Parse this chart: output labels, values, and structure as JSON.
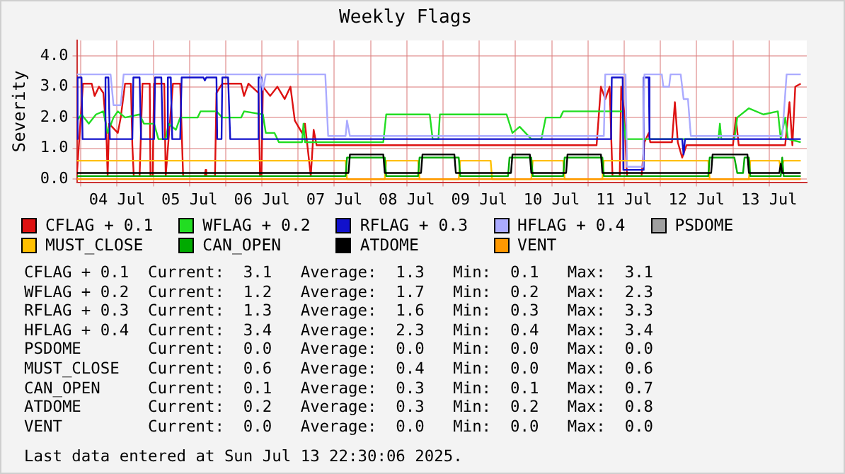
{
  "chart_data": {
    "type": "line",
    "title": "Weekly Flags",
    "ylabel": "Severity",
    "xlim": [
      "2025-07-03T22:40",
      "2025-07-14T00:30"
    ],
    "xticks": [
      {
        "value": "2025-07-04T00:00",
        "label": null
      },
      {
        "value": "2025-07-04T12:00",
        "label": "04 Jul"
      },
      {
        "value": "2025-07-05T00:00",
        "label": null
      },
      {
        "value": "2025-07-05T12:00",
        "label": "05 Jul"
      },
      {
        "value": "2025-07-06T00:00",
        "label": null
      },
      {
        "value": "2025-07-06T12:00",
        "label": "06 Jul"
      },
      {
        "value": "2025-07-07T00:00",
        "label": null
      },
      {
        "value": "2025-07-07T12:00",
        "label": "07 Jul"
      },
      {
        "value": "2025-07-08T00:00",
        "label": null
      },
      {
        "value": "2025-07-08T12:00",
        "label": "08 Jul"
      },
      {
        "value": "2025-07-09T00:00",
        "label": null
      },
      {
        "value": "2025-07-09T12:00",
        "label": "09 Jul"
      },
      {
        "value": "2025-07-10T00:00",
        "label": null
      },
      {
        "value": "2025-07-10T12:00",
        "label": "10 Jul"
      },
      {
        "value": "2025-07-11T00:00",
        "label": null
      },
      {
        "value": "2025-07-11T12:00",
        "label": "11 Jul"
      },
      {
        "value": "2025-07-12T00:00",
        "label": null
      },
      {
        "value": "2025-07-12T12:00",
        "label": "12 Jul"
      },
      {
        "value": "2025-07-13T00:00",
        "label": null
      },
      {
        "value": "2025-07-13T12:00",
        "label": "13 Jul"
      }
    ],
    "ylim": [
      -0.1,
      4.5
    ],
    "yticks": [
      {
        "value": 0,
        "label": "0.0"
      },
      {
        "value": 1,
        "label": "1.0"
      },
      {
        "value": 2,
        "label": "2.0"
      },
      {
        "value": 3,
        "label": "3.0"
      },
      {
        "value": 4,
        "label": "4.0"
      }
    ],
    "grid": true,
    "legend": "bottom",
    "marker": "none",
    "series": [
      {
        "name": "CFLAG + 0.1",
        "color": "#dd1111",
        "x": [
          "2025-07-03T22:40",
          "2025-07-04T00:43",
          "2025-07-04T03:36",
          "2025-07-04T04:34",
          "2025-07-04T06:01",
          "2025-07-04T07:27",
          "2025-07-04T08:25",
          "2025-07-04T08:53",
          "2025-07-04T09:22",
          "2025-07-04T12:15",
          "2025-07-04T13:13",
          "2025-07-04T14:39",
          "2025-07-04T16:35",
          "2025-07-04T17:04",
          "2025-07-04T17:32",
          "2025-07-04T19:28",
          "2025-07-04T20:26",
          "2025-07-04T22:50",
          "2025-07-04T23:04",
          "2025-07-04T23:47",
          "2025-07-05T00:16",
          "2025-07-05T03:38",
          "2025-07-05T04:07",
          "2025-07-05T06:31",
          "2025-07-05T08:55",
          "2025-07-05T09:53",
          "2025-07-05T17:05",
          "2025-07-05T17:20",
          "2025-07-05T17:34",
          "2025-07-05T20:27",
          "2025-07-05T20:56",
          "2025-07-05T22:52",
          "2025-07-06T05:06",
          "2025-07-06T06:04",
          "2025-07-06T07:31",
          "2025-07-06T10:52",
          "2025-07-06T11:21",
          "2025-07-06T11:50",
          "2025-07-06T12:19",
          "2025-07-06T14:43",
          "2025-07-06T17:07",
          "2025-07-06T19:32",
          "2025-07-06T21:27",
          "2025-07-06T22:53",
          "2025-07-07T01:17",
          "2025-07-07T02:15",
          "2025-07-07T04:11",
          "2025-07-07T05:08",
          "2025-07-07T06:06",
          "2025-07-11T02:52",
          "2025-07-11T04:18",
          "2025-07-11T05:44",
          "2025-07-11T07:11",
          "2025-07-11T08:08",
          "2025-07-11T10:32",
          "2025-07-11T11:01",
          "2025-07-11T11:59",
          "2025-07-11T12:57",
          "2025-07-11T17:45",
          "2025-07-11T18:43",
          "2025-07-11T20:09",
          "2025-07-11T20:38",
          "2025-07-12T03:50",
          "2025-07-12T04:48",
          "2025-07-12T05:46",
          "2025-07-12T07:13",
          "2025-07-12T08:39",
          "2025-07-13T00:02",
          "2025-07-13T01:00",
          "2025-07-13T01:57",
          "2025-07-13T17:20",
          "2025-07-13T18:46",
          "2025-07-13T19:44",
          "2025-07-13T20:41",
          "2025-07-13T22:30"
        ],
        "values": [
          0.1,
          3.1,
          3.1,
          2.7,
          3.0,
          2.8,
          1.6,
          0.1,
          1.8,
          1.5,
          2.0,
          3.1,
          3.1,
          1.1,
          0.1,
          0.1,
          3.1,
          3.1,
          0.1,
          0.1,
          3.1,
          3.1,
          0.1,
          3.1,
          3.1,
          0.1,
          0.1,
          0.3,
          0.1,
          0.1,
          2.8,
          3.1,
          3.1,
          2.7,
          3.1,
          2.8,
          0.1,
          0.1,
          3.0,
          2.7,
          3.0,
          2.6,
          3.0,
          1.9,
          1.5,
          1.8,
          0.1,
          1.6,
          1.1,
          1.1,
          3.0,
          2.6,
          3.0,
          0.1,
          0.1,
          3.0,
          2.2,
          0.1,
          0.1,
          1.2,
          1.5,
          1.2,
          1.2,
          2.5,
          1.2,
          0.7,
          1.1,
          1.1,
          2.0,
          1.1,
          1.1,
          2.5,
          1.1,
          3.0,
          3.1
        ]
      },
      {
        "name": "WFLAG + 0.2",
        "color": "#22dd22",
        "x": [
          "2025-07-03T22:40",
          "2025-07-04T00:14",
          "2025-07-04T02:38",
          "2025-07-04T05:02",
          "2025-07-04T07:27",
          "2025-07-04T08:53",
          "2025-07-04T10:49",
          "2025-07-04T12:15",
          "2025-07-04T14:39",
          "2025-07-04T19:28",
          "2025-07-04T20:54",
          "2025-07-05T00:16",
          "2025-07-05T01:43",
          "2025-07-05T04:07",
          "2025-07-05T05:04",
          "2025-07-05T07:29",
          "2025-07-05T08:55",
          "2025-07-05T14:41",
          "2025-07-05T15:39",
          "2025-07-05T20:56",
          "2025-07-05T22:52",
          "2025-07-06T05:06",
          "2025-07-06T06:04",
          "2025-07-06T12:19",
          "2025-07-06T13:17",
          "2025-07-06T16:10",
          "2025-07-06T17:36",
          "2025-07-07T01:17",
          "2025-07-07T01:46",
          "2025-07-07T02:15",
          "2025-07-08T04:12",
          "2025-07-08T05:10",
          "2025-07-08T19:35",
          "2025-07-08T20:33",
          "2025-07-08T22:28",
          "2025-07-08T22:57",
          "2025-07-09T21:03",
          "2025-07-09T22:59",
          "2025-07-10T01:23",
          "2025-07-10T05:14",
          "2025-07-10T08:35",
          "2025-07-10T10:02",
          "2025-07-10T14:50",
          "2025-07-10T15:48",
          "2025-07-11T11:30",
          "2025-07-11T12:28",
          "2025-07-12T19:14",
          "2025-07-12T19:43",
          "2025-07-12T20:11",
          "2025-07-13T00:31",
          "2025-07-13T01:28",
          "2025-07-13T05:19",
          "2025-07-13T10:07",
          "2025-07-13T14:55",
          "2025-07-13T15:53",
          "2025-07-13T17:20",
          "2025-07-13T18:17",
          "2025-07-13T22:30"
        ],
        "values": [
          1.9,
          2.1,
          1.8,
          2.1,
          2.2,
          1.5,
          2.0,
          2.2,
          2.0,
          2.1,
          1.8,
          1.8,
          1.3,
          1.3,
          1.8,
          1.6,
          2.0,
          2.0,
          2.2,
          2.2,
          2.0,
          2.0,
          2.2,
          2.1,
          1.5,
          1.5,
          1.2,
          1.2,
          1.8,
          1.2,
          1.2,
          2.1,
          2.1,
          1.3,
          1.3,
          2.1,
          2.1,
          1.5,
          1.7,
          1.3,
          1.3,
          2.0,
          2.0,
          2.2,
          2.2,
          1.3,
          1.3,
          1.8,
          1.3,
          1.3,
          2.0,
          2.3,
          2.1,
          2.2,
          1.3,
          2.0,
          1.3,
          1.2
        ]
      },
      {
        "name": "RFLAG + 0.3",
        "color": "#1111cc",
        "x": [
          "2025-07-03T22:40",
          "2025-07-03T22:56",
          "2025-07-04T00:14",
          "2025-07-04T00:35",
          "2025-07-04T07:56",
          "2025-07-04T08:10",
          "2025-07-04T09:08",
          "2025-07-04T09:37",
          "2025-07-04T17:04",
          "2025-07-04T17:24",
          "2025-07-04T19:28",
          "2025-07-04T19:57",
          "2025-07-05T00:16",
          "2025-07-05T00:36",
          "2025-07-05T02:40",
          "2025-07-05T03:09",
          "2025-07-05T04:36",
          "2025-07-05T04:50",
          "2025-07-05T05:48",
          "2025-07-05T06:17",
          "2025-07-05T08:55",
          "2025-07-05T09:24",
          "2025-07-05T16:37",
          "2025-07-05T17:05",
          "2025-07-05T17:34",
          "2025-07-05T20:56",
          "2025-07-05T21:11",
          "2025-07-05T22:37",
          "2025-07-05T22:52",
          "2025-07-06T00:47",
          "2025-07-06T01:30",
          "2025-07-06T10:38",
          "2025-07-06T10:52",
          "2025-07-06T11:50",
          "2025-07-06T12:05",
          "2025-07-11T07:40",
          "2025-07-11T07:54",
          "2025-07-11T11:30",
          "2025-07-11T11:44",
          "2025-07-11T18:14",
          "2025-07-11T18:28",
          "2025-07-11T20:09",
          "2025-07-11T20:24",
          "2025-07-12T07:13",
          "2025-07-12T07:41",
          "2025-07-12T08:10",
          "2025-07-13T22:30"
        ],
        "values": [
          1.3,
          3.3,
          3.3,
          1.3,
          1.3,
          3.3,
          3.3,
          1.3,
          1.3,
          3.3,
          3.3,
          1.3,
          1.3,
          3.3,
          3.3,
          1.3,
          1.3,
          3.3,
          3.3,
          1.3,
          1.3,
          3.3,
          3.3,
          3.2,
          3.3,
          3.3,
          1.3,
          1.3,
          3.3,
          3.3,
          1.3,
          1.3,
          3.3,
          3.3,
          1.3,
          1.3,
          3.3,
          3.3,
          0.3,
          0.3,
          3.3,
          3.3,
          1.3,
          1.3,
          0.8,
          1.3,
          1.3
        ]
      },
      {
        "name": "HFLAG + 0.4",
        "color": "#aaaaff",
        "x": [
          "2025-07-03T22:40",
          "2025-07-04T09:51",
          "2025-07-04T10:49",
          "2025-07-04T13:13",
          "2025-07-04T14:11",
          "2025-07-06T11:21",
          "2025-07-06T12:19",
          "2025-07-06T13:17",
          "2025-07-07T08:59",
          "2025-07-07T09:56",
          "2025-07-07T15:43",
          "2025-07-07T16:11",
          "2025-07-07T17:09",
          "2025-07-11T05:16",
          "2025-07-11T05:44",
          "2025-07-11T12:28",
          "2025-07-11T12:57",
          "2025-07-11T18:14",
          "2025-07-11T18:43",
          "2025-07-12T00:29",
          "2025-07-12T00:58",
          "2025-07-12T02:53",
          "2025-07-12T03:22",
          "2025-07-12T06:44",
          "2025-07-12T07:41",
          "2025-07-12T09:08",
          "2025-07-12T10:05",
          "2025-07-13T16:22",
          "2025-07-13T17:49",
          "2025-07-13T22:30"
        ],
        "values": [
          3.4,
          3.4,
          2.4,
          2.4,
          3.4,
          3.4,
          2.9,
          3.4,
          3.4,
          1.4,
          1.4,
          1.9,
          1.4,
          1.4,
          3.4,
          3.4,
          0.4,
          0.4,
          3.4,
          3.4,
          3.0,
          3.0,
          3.4,
          3.4,
          2.6,
          2.6,
          1.4,
          1.4,
          3.4,
          3.4
        ]
      },
      {
        "name": "PSDOME",
        "color": "#a0a0a0"
      },
      {
        "name": "MUST_CLOSE",
        "color": "#ffc000",
        "x": [
          "2025-07-03T22:40",
          "2025-07-07T15:43",
          "2025-07-07T16:11",
          "2025-07-08T04:41",
          "2025-07-08T05:10",
          "2025-07-08T15:44",
          "2025-07-08T16:13",
          "2025-07-09T05:12",
          "2025-07-09T05:41",
          "2025-07-09T15:46",
          "2025-07-09T16:15",
          "2025-07-10T05:14",
          "2025-07-10T05:43",
          "2025-07-10T15:48",
          "2025-07-10T16:17",
          "2025-07-11T04:47",
          "2025-07-11T05:16",
          "2025-07-12T15:52",
          "2025-07-12T16:20",
          "2025-07-13T05:19",
          "2025-07-13T05:47",
          "2025-07-13T15:24",
          "2025-07-13T15:53",
          "2025-07-13T16:50",
          "2025-07-13T22:30"
        ],
        "values": [
          0.6,
          0.6,
          0.0,
          0.0,
          0.6,
          0.6,
          0.0,
          0.0,
          0.6,
          0.6,
          0.0,
          0.0,
          0.6,
          0.6,
          0.0,
          0.0,
          0.6,
          0.6,
          0.0,
          0.0,
          0.6,
          0.6,
          0.3,
          0.6,
          0.6
        ]
      },
      {
        "name": "CAN_OPEN",
        "color": "#00aa00",
        "x": [
          "2025-07-03T22:40",
          "2025-07-07T15:43",
          "2025-07-07T16:11",
          "2025-07-08T04:41",
          "2025-07-08T05:10",
          "2025-07-08T15:44",
          "2025-07-08T16:13",
          "2025-07-09T05:12",
          "2025-07-09T05:41",
          "2025-07-09T21:32",
          "2025-07-09T22:01",
          "2025-07-10T05:14",
          "2025-07-10T05:43",
          "2025-07-10T15:48",
          "2025-07-10T16:17",
          "2025-07-11T04:47",
          "2025-07-11T05:16",
          "2025-07-12T15:52",
          "2025-07-12T16:20",
          "2025-07-13T00:31",
          "2025-07-13T01:28",
          "2025-07-13T03:23",
          "2025-07-13T03:52",
          "2025-07-13T05:19",
          "2025-07-13T05:47",
          "2025-07-13T15:53",
          "2025-07-13T16:22",
          "2025-07-13T16:50",
          "2025-07-13T22:30"
        ],
        "values": [
          0.1,
          0.1,
          0.7,
          0.7,
          0.1,
          0.1,
          0.7,
          0.7,
          0.1,
          0.1,
          0.7,
          0.7,
          0.1,
          0.1,
          0.7,
          0.7,
          0.1,
          0.1,
          0.7,
          0.7,
          0.2,
          0.2,
          0.7,
          0.7,
          0.1,
          0.1,
          0.7,
          0.1,
          0.1
        ]
      },
      {
        "name": "ATDOME",
        "color": "#000000",
        "x": [
          "2025-07-03T22:40",
          "2025-07-07T16:40",
          "2025-07-07T17:09",
          "2025-07-08T04:12",
          "2025-07-08T04:41",
          "2025-07-08T16:42",
          "2025-07-08T17:11",
          "2025-07-09T03:45",
          "2025-07-09T04:14",
          "2025-07-09T22:30",
          "2025-07-09T22:59",
          "2025-07-10T04:45",
          "2025-07-10T05:14",
          "2025-07-10T16:46",
          "2025-07-10T17:14",
          "2025-07-11T04:18",
          "2025-07-11T04:47",
          "2025-07-12T16:49",
          "2025-07-12T17:18",
          "2025-07-13T04:50",
          "2025-07-13T05:19",
          "2025-07-13T15:24",
          "2025-07-13T15:53",
          "2025-07-13T16:22",
          "2025-07-13T22:30"
        ],
        "values": [
          0.2,
          0.2,
          0.8,
          0.8,
          0.2,
          0.2,
          0.8,
          0.8,
          0.2,
          0.2,
          0.8,
          0.8,
          0.2,
          0.2,
          0.8,
          0.8,
          0.2,
          0.2,
          0.8,
          0.8,
          0.2,
          0.2,
          0.5,
          0.2,
          0.2
        ]
      },
      {
        "name": "VENT",
        "color": "#ff9900",
        "x": [
          "2025-07-03T22:40",
          "2025-07-13T22:30"
        ],
        "values": [
          0.0,
          0.0
        ]
      }
    ],
    "annotations": [
      "CFLAG + 0.1  Current:  3.1   Average:  1.3   Min:  0.1   Max:  3.1",
      "WFLAG + 0.2  Current:  1.2   Average:  1.7   Min:  0.2   Max:  2.3",
      "RFLAG + 0.3  Current:  1.3   Average:  1.6   Min:  0.3   Max:  3.3",
      "HFLAG + 0.4  Current:  3.4   Average:  2.3   Min:  0.4   Max:  3.4",
      "PSDOME       Current:  0.0   Average:  0.0   Min:  0.0   Max:  0.0",
      "MUST_CLOSE   Current:  0.6   Average:  0.4   Min:  0.0   Max:  0.6",
      "CAN_OPEN     Current:  0.1   Average:  0.3   Min:  0.1   Max:  0.7",
      "ATDOME       Current:  0.2   Average:  0.3   Min:  0.2   Max:  0.8",
      "VENT         Current:  0.0   Average:  0.0   Min:  0.0   Max:  0.0",
      "Last data entered at Sun Jul 13 22:30:06 2025."
    ]
  }
}
